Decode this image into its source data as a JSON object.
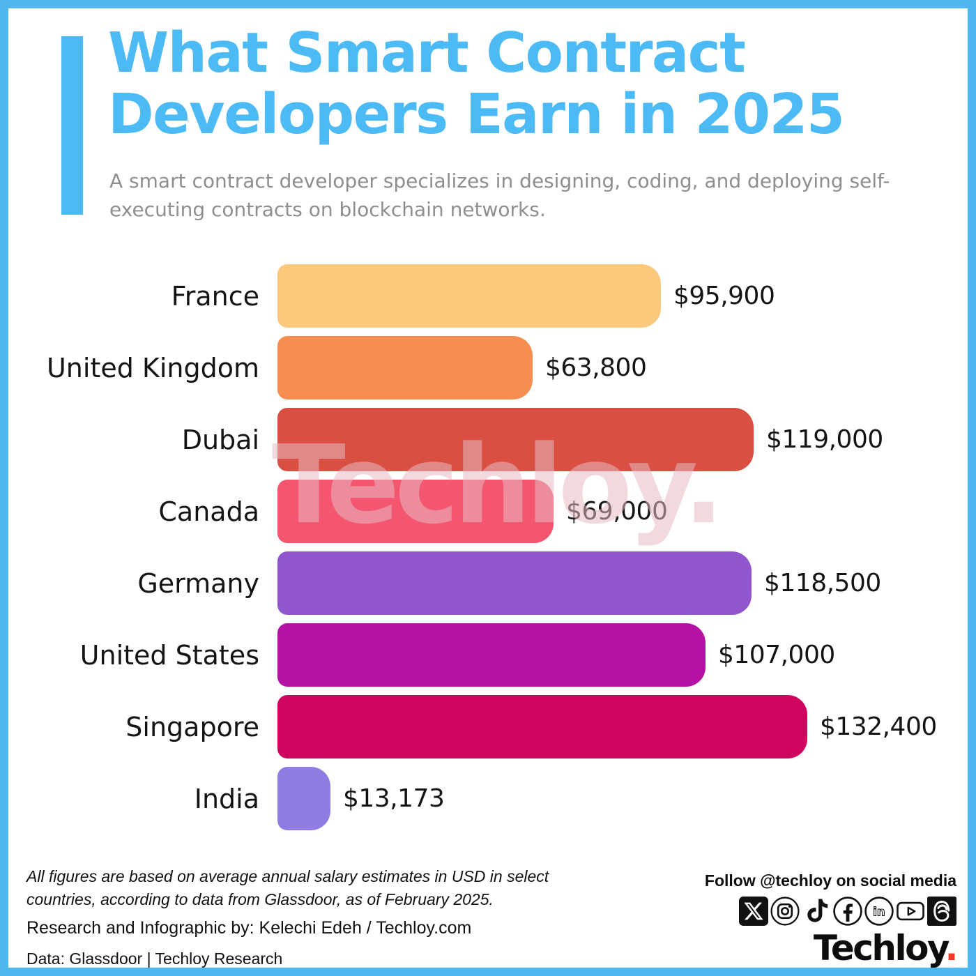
{
  "theme": {
    "border_color": "#4FB6EE",
    "accent_color": "#4CBAF5",
    "subtitle_color": "#8E8E8E",
    "text_color": "#141414",
    "watermark_color": "rgba(232,186,195,0.55)",
    "logo_dot_color": "#EF3B24"
  },
  "header": {
    "title": "What Smart Contract\nDevelopers Earn in 2025",
    "subtitle": "A smart contract developer specializes in designing, coding, and deploying self-\nexecuting contracts on blockchain networks."
  },
  "chart_data": {
    "type": "bar",
    "orientation": "horizontal",
    "title": "What Smart Contract Developers Earn in 2025",
    "unit": "USD average annual salary",
    "categories": [
      "France",
      "United Kingdom",
      "Dubai",
      "Canada",
      "Germany",
      "United States",
      "Singapore",
      "India"
    ],
    "values": [
      95900,
      63800,
      119000,
      69000,
      118500,
      107000,
      132400,
      13173
    ],
    "value_labels": [
      "$95,900",
      "$63,800",
      "$119,000",
      "$69,000",
      "$118,500",
      "$107,000",
      "$132,400",
      "$13,173"
    ],
    "bar_colors": [
      "#FBC87C",
      "#F58E50",
      "#D94F42",
      "#F4566F",
      "#9156CE",
      "#B411A5",
      "#D0055F",
      "#907CE3"
    ],
    "scale_max": 132400,
    "xlim": [
      0,
      132400
    ],
    "grid": false,
    "legend": false
  },
  "watermark": {
    "text": "Techloy."
  },
  "footer": {
    "disclaimer": "All figures are based on average annual salary estimates in USD in select\ncountries, according to data from Glassdoor, as of February 2025.",
    "credit": "Research and Infographic by: Kelechi Edeh / Techloy.com",
    "source": "Data: Glassdoor | Techloy Research",
    "follow": "Follow @techloy on social media",
    "logo_text": "Techloy",
    "logo_dot": ".",
    "social_icons": [
      "x-icon",
      "instagram-icon",
      "tiktok-icon",
      "facebook-icon",
      "linkedin-icon",
      "youtube-icon",
      "threads-icon"
    ]
  }
}
